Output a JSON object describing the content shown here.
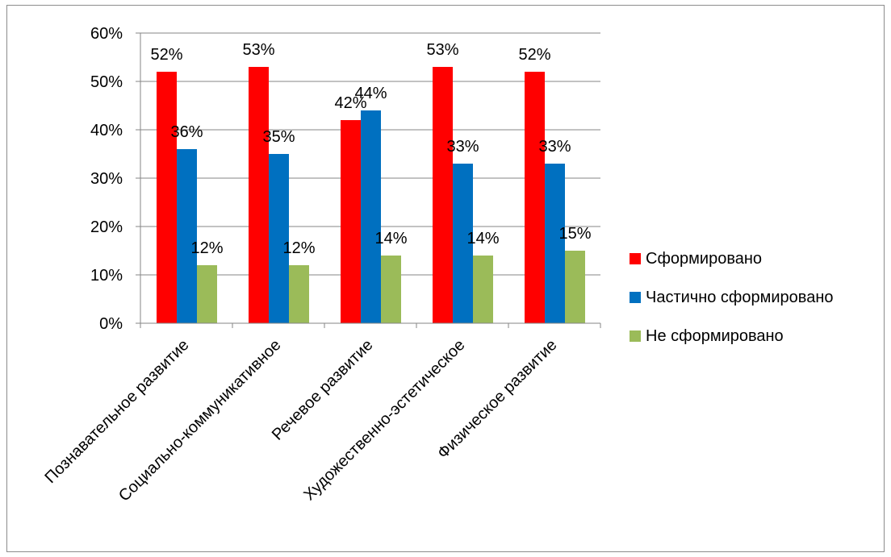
{
  "chart_data": {
    "type": "bar",
    "categories": [
      "Познавательное развитие",
      "Социально-коммуникативное",
      "Речевое развитие",
      "Художественно-эстетическое",
      "Физическое развитие"
    ],
    "series": [
      {
        "name": "Сформировано",
        "color": "#ff0000",
        "values": [
          52,
          53,
          42,
          53,
          52
        ]
      },
      {
        "name": "Частично сформировано",
        "color": "#0070c0",
        "values": [
          36,
          35,
          44,
          33,
          33
        ]
      },
      {
        "name": "Не сформировано",
        "color": "#9bbb59",
        "values": [
          12,
          12,
          14,
          14,
          15
        ]
      }
    ],
    "data_labels": [
      [
        "52%",
        "53%",
        "42%",
        "53%",
        "52%"
      ],
      [
        "36%",
        "35%",
        "44%",
        "33%",
        "33%"
      ],
      [
        "12%",
        "12%",
        "14%",
        "14%",
        "15%"
      ]
    ],
    "ylim": [
      0,
      60
    ],
    "yticks": [
      0,
      10,
      20,
      30,
      40,
      50,
      60
    ],
    "ytick_labels": [
      "0%",
      "10%",
      "20%",
      "30%",
      "40%",
      "50%",
      "60%"
    ],
    "grid": true,
    "legend_position": "right"
  }
}
